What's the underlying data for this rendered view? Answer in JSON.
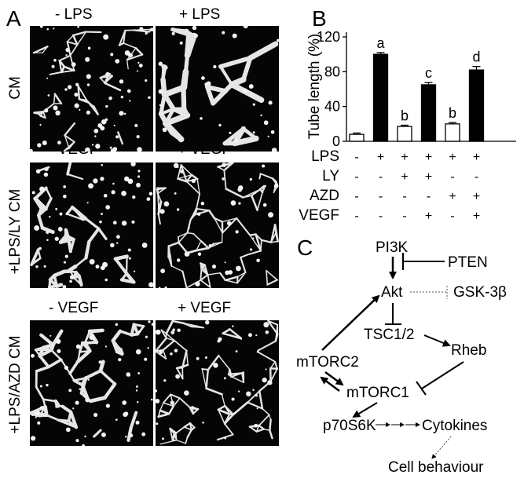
{
  "panels": {
    "a": "A",
    "b": "B",
    "c": "C"
  },
  "panel_a": {
    "rows": [
      {
        "label": "CM",
        "left": "- LPS",
        "right": "+ LPS"
      },
      {
        "label": "+LPS/LY CM",
        "left": "- VEGF",
        "right": "+ VEGF"
      },
      {
        "label": "+LPS/AZD CM",
        "left": "- VEGF",
        "right": "+ VEGF"
      }
    ]
  },
  "chart_data": {
    "type": "bar",
    "ylabel": "Tube length (%)",
    "ylim": [
      0,
      120
    ],
    "yticks": [
      0,
      40,
      80,
      120
    ],
    "values": [
      8,
      100,
      17,
      65,
      20,
      82
    ],
    "errors": [
      1.5,
      2,
      1.5,
      2.5,
      1.5,
      4
    ],
    "fills": [
      "white",
      "black",
      "white",
      "black",
      "white",
      "black"
    ],
    "letters": [
      "",
      "a",
      "b",
      "c",
      "b",
      "d"
    ],
    "treatments": [
      {
        "name": "LPS",
        "signs": [
          "-",
          "+",
          "+",
          "+",
          "+",
          "+"
        ]
      },
      {
        "name": "LY",
        "signs": [
          "-",
          "-",
          "+",
          "+",
          "-",
          "-"
        ]
      },
      {
        "name": "AZD",
        "signs": [
          "-",
          "-",
          "-",
          "-",
          "+",
          "+"
        ]
      },
      {
        "name": "VEGF",
        "signs": [
          "-",
          "-",
          "-",
          "+",
          "-",
          "+"
        ]
      }
    ]
  },
  "pathway": {
    "pi3k": "PI3K",
    "pten": "PTEN",
    "akt": "Akt",
    "gsk": "GSK-3β",
    "tsc": "TSC1/2",
    "rheb": "Rheb",
    "mtorc2": "mTORC2",
    "mtorc1": "mTORC1",
    "p70": "p70S6K",
    "cytokines": "Cytokines",
    "cell": "Cell behaviour"
  }
}
